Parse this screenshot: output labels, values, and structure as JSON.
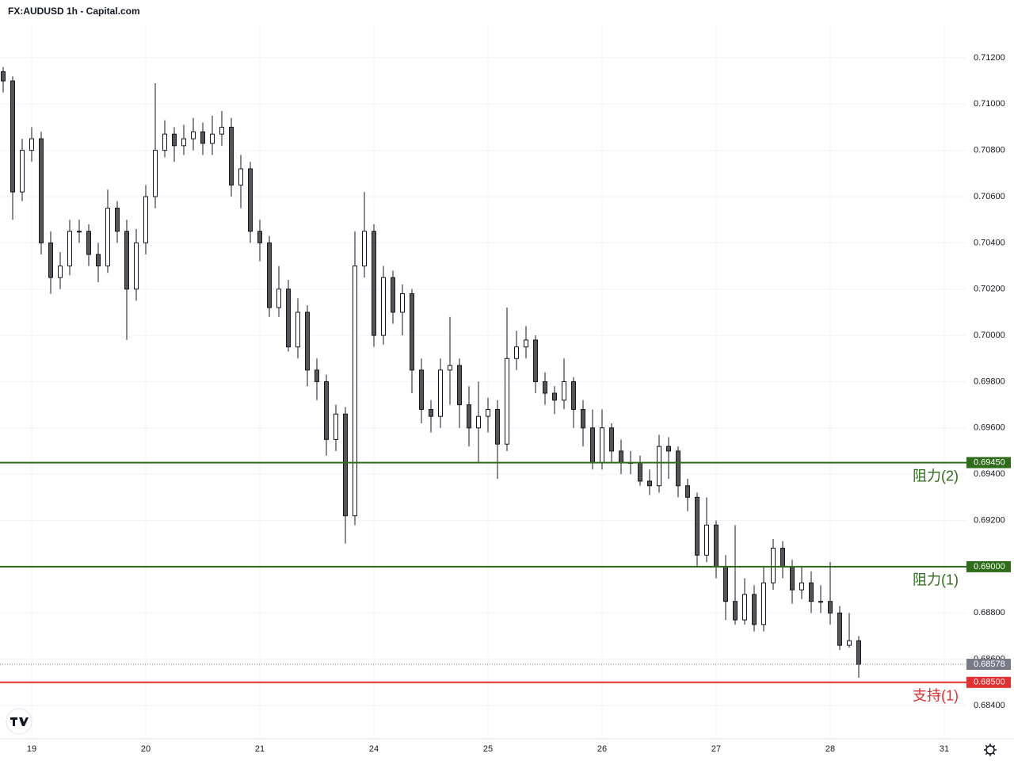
{
  "chart_data": {
    "type": "candlestick",
    "title": "FX:AUDUSD 1h - Capital.com",
    "x": [
      -6,
      -4,
      -2,
      0,
      2,
      4,
      6,
      8,
      10,
      12,
      14,
      16,
      18,
      20,
      22,
      24,
      26,
      28,
      30,
      32,
      34,
      36,
      38,
      40,
      42,
      44,
      46,
      48,
      50,
      52,
      54,
      56,
      58,
      60,
      62,
      64,
      66,
      68,
      70,
      72,
      74,
      76,
      78,
      80,
      82,
      84,
      86,
      88,
      90,
      92,
      94,
      96,
      98,
      100,
      102,
      104,
      106,
      108,
      110,
      112,
      114,
      116,
      118,
      120,
      122,
      124,
      126,
      128,
      130,
      132,
      134,
      136,
      138,
      140,
      142,
      144,
      146,
      148,
      150,
      152,
      154,
      156,
      158,
      160,
      162,
      164,
      166,
      168,
      170,
      172,
      174
    ],
    "open": [
      0.7114,
      0.711,
      0.7062,
      0.708,
      0.7085,
      0.704,
      0.7025,
      0.703,
      0.7045,
      0.7045,
      0.7035,
      0.703,
      0.7055,
      0.7045,
      0.702,
      0.704,
      0.706,
      0.708,
      0.7087,
      0.7082,
      0.7085,
      0.7088,
      0.7083,
      0.7087,
      0.709,
      0.7065,
      0.7072,
      0.7045,
      0.704,
      0.7012,
      0.702,
      0.6995,
      0.701,
      0.6985,
      0.698,
      0.6955,
      0.6966,
      0.6922,
      0.703,
      0.7045,
      0.7,
      0.7025,
      0.701,
      0.7018,
      0.6985,
      0.6968,
      0.6965,
      0.6985,
      0.6987,
      0.697,
      0.696,
      0.6965,
      0.6968,
      0.6953,
      0.699,
      0.6995,
      0.6998,
      0.698,
      0.6975,
      0.6972,
      0.698,
      0.6968,
      0.696,
      0.6945,
      0.696,
      0.695,
      0.6945,
      0.6945,
      0.6937,
      0.6935,
      0.6952,
      0.695,
      0.6935,
      0.693,
      0.6905,
      0.6918,
      0.69,
      0.6885,
      0.6877,
      0.6888,
      0.6875,
      0.6893,
      0.6908,
      0.69,
      0.689,
      0.6893,
      0.6885,
      0.6885,
      0.688,
      0.6866,
      0.6868
    ],
    "high": [
      0.7116,
      0.7112,
      0.7085,
      0.709,
      0.7088,
      0.7045,
      0.7036,
      0.705,
      0.705,
      0.7048,
      0.704,
      0.7063,
      0.7058,
      0.705,
      0.7046,
      0.7065,
      0.7109,
      0.7093,
      0.709,
      0.7091,
      0.7094,
      0.7092,
      0.7095,
      0.7097,
      0.7094,
      0.7078,
      0.7075,
      0.705,
      0.7043,
      0.703,
      0.7024,
      0.7016,
      0.7013,
      0.699,
      0.6983,
      0.697,
      0.6969,
      0.7045,
      0.7062,
      0.7048,
      0.703,
      0.7028,
      0.7022,
      0.702,
      0.699,
      0.6972,
      0.699,
      0.7008,
      0.699,
      0.6978,
      0.698,
      0.6973,
      0.6972,
      0.7012,
      0.7002,
      0.7004,
      0.7,
      0.6984,
      0.6978,
      0.699,
      0.6982,
      0.6972,
      0.6968,
      0.6968,
      0.6962,
      0.6955,
      0.695,
      0.6948,
      0.6942,
      0.6957,
      0.6956,
      0.6952,
      0.6938,
      0.6932,
      0.693,
      0.692,
      0.6905,
      0.6918,
      0.6895,
      0.6892,
      0.69,
      0.6912,
      0.6911,
      0.6903,
      0.69,
      0.6898,
      0.6892,
      0.6902,
      0.6883,
      0.688,
      0.687
    ],
    "low": [
      0.7105,
      0.705,
      0.7058,
      0.7075,
      0.7035,
      0.7018,
      0.702,
      0.7026,
      0.704,
      0.703,
      0.7023,
      0.7027,
      0.704,
      0.6998,
      0.7015,
      0.7035,
      0.7055,
      0.7077,
      0.7075,
      0.7078,
      0.708,
      0.7078,
      0.7078,
      0.7082,
      0.706,
      0.7055,
      0.704,
      0.7032,
      0.7008,
      0.7008,
      0.6993,
      0.699,
      0.6978,
      0.6972,
      0.6948,
      0.695,
      0.691,
      0.6918,
      0.7025,
      0.6995,
      0.6996,
      0.7005,
      0.7,
      0.6975,
      0.6962,
      0.6958,
      0.696,
      0.697,
      0.696,
      0.6952,
      0.6945,
      0.6958,
      0.6938,
      0.695,
      0.6985,
      0.699,
      0.6975,
      0.697,
      0.6966,
      0.6968,
      0.696,
      0.6952,
      0.6942,
      0.6942,
      0.6945,
      0.694,
      0.694,
      0.6935,
      0.6931,
      0.6932,
      0.6938,
      0.693,
      0.6924,
      0.69,
      0.6902,
      0.6895,
      0.6877,
      0.6875,
      0.6875,
      0.6872,
      0.6872,
      0.689,
      0.6895,
      0.6884,
      0.6886,
      0.688,
      0.688,
      0.6875,
      0.6864,
      0.6865,
      0.6852
    ],
    "close": [
      0.711,
      0.7062,
      0.708,
      0.7085,
      0.704,
      0.7025,
      0.703,
      0.7045,
      0.7045,
      0.7035,
      0.703,
      0.7055,
      0.7045,
      0.702,
      0.704,
      0.706,
      0.708,
      0.7087,
      0.7082,
      0.7085,
      0.7088,
      0.7083,
      0.7087,
      0.709,
      0.7065,
      0.7072,
      0.7045,
      0.704,
      0.7012,
      0.702,
      0.6995,
      0.701,
      0.6985,
      0.698,
      0.6955,
      0.6966,
      0.6922,
      0.703,
      0.7045,
      0.7,
      0.7025,
      0.701,
      0.7018,
      0.6985,
      0.6968,
      0.6965,
      0.6985,
      0.6987,
      0.697,
      0.696,
      0.6965,
      0.6968,
      0.6953,
      0.699,
      0.6995,
      0.6998,
      0.698,
      0.6975,
      0.6972,
      0.698,
      0.6968,
      0.696,
      0.6945,
      0.696,
      0.695,
      0.6945,
      0.6945,
      0.6937,
      0.6935,
      0.6952,
      0.695,
      0.6935,
      0.693,
      0.6905,
      0.6918,
      0.69,
      0.6885,
      0.6877,
      0.6888,
      0.6875,
      0.6893,
      0.6908,
      0.69,
      0.689,
      0.6893,
      0.6885,
      0.6885,
      0.688,
      0.6866,
      0.6868,
      0.68578
    ],
    "up_color": "#ffffff",
    "down_color": "#555555",
    "xlim": [
      -6.667,
      196.667
    ],
    "xticks": [
      {
        "value": 0,
        "label": "19"
      },
      {
        "value": 24,
        "label": "20"
      },
      {
        "value": 48,
        "label": "21"
      },
      {
        "value": 72,
        "label": "24"
      },
      {
        "value": 96,
        "label": "25"
      },
      {
        "value": 120,
        "label": "26"
      },
      {
        "value": 144,
        "label": "27"
      },
      {
        "value": 168,
        "label": "28"
      },
      {
        "value": 192,
        "label": "31"
      }
    ],
    "ylim": [
      0.68256,
      0.71347
    ],
    "yticks": [
      {
        "value": 0.684,
        "label": "0.68400"
      },
      {
        "value": 0.686,
        "label": "0.68600"
      },
      {
        "value": 0.688,
        "label": "0.68800"
      },
      {
        "value": 0.69,
        "label": "0.69000"
      },
      {
        "value": 0.692,
        "label": "0.69200"
      },
      {
        "value": 0.694,
        "label": "0.69400"
      },
      {
        "value": 0.696,
        "label": "0.69600"
      },
      {
        "value": 0.698,
        "label": "0.69800"
      },
      {
        "value": 0.7,
        "label": "0.70000"
      },
      {
        "value": 0.702,
        "label": "0.70200"
      },
      {
        "value": 0.704,
        "label": "0.70400"
      },
      {
        "value": 0.706,
        "label": "0.70600"
      },
      {
        "value": 0.708,
        "label": "0.70800"
      },
      {
        "value": 0.71,
        "label": "0.71000"
      },
      {
        "value": 0.712,
        "label": "0.71200"
      }
    ],
    "grid": true,
    "levels": [
      {
        "value": 0.6945,
        "price_label": "0.69450",
        "label": "阻力(2)",
        "color": "#2e6b1a"
      },
      {
        "value": 0.69,
        "price_label": "0.69000",
        "label": "阻力(1)",
        "color": "#2e6b1a"
      },
      {
        "value": 0.685,
        "price_label": "0.68500",
        "label": "支持(1)",
        "color": "#e03030"
      }
    ],
    "last_price": {
      "value": 0.68578,
      "label": "0.68578",
      "color": "#787b86"
    }
  }
}
